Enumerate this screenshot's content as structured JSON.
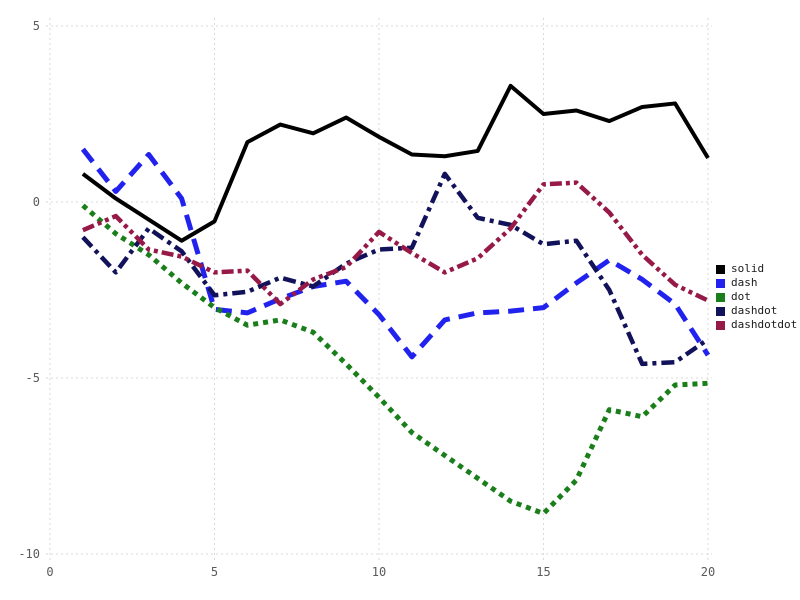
{
  "chart_data": {
    "type": "line",
    "title": "",
    "xlabel": "",
    "ylabel": "",
    "grid": true,
    "legend_position": "right-outside",
    "xlim": [
      0,
      20
    ],
    "ylim": [
      -10,
      5
    ],
    "x_ticks": [
      0,
      5,
      10,
      15,
      20
    ],
    "y_ticks": [
      5,
      0,
      -5,
      -10
    ],
    "x": [
      1,
      2,
      3,
      4,
      5,
      6,
      7,
      8,
      9,
      10,
      11,
      12,
      13,
      14,
      15,
      16,
      17,
      18,
      19,
      20
    ],
    "series": [
      {
        "name": "solid",
        "color": "#000000",
        "dash": "solid",
        "width": 4,
        "values": [
          0.8,
          0.1,
          -0.5,
          -1.1,
          -0.55,
          1.7,
          2.2,
          1.95,
          2.4,
          1.85,
          1.35,
          1.3,
          1.45,
          3.3,
          2.5,
          2.6,
          2.3,
          2.7,
          2.8,
          1.25
        ]
      },
      {
        "name": "dash",
        "color": "#2222ee",
        "dash": "dash",
        "width": 5,
        "values": [
          1.5,
          0.3,
          1.35,
          0.1,
          -3.05,
          -3.15,
          -2.75,
          -2.4,
          -2.25,
          -3.2,
          -4.4,
          -3.35,
          -3.15,
          -3.1,
          -3.0,
          -2.3,
          -1.65,
          -2.2,
          -2.9,
          -4.35
        ]
      },
      {
        "name": "dot",
        "color": "#1a7f1a",
        "dash": "dot",
        "width": 5,
        "values": [
          -0.1,
          -0.9,
          -1.5,
          -2.3,
          -3.0,
          -3.5,
          -3.35,
          -3.7,
          -4.6,
          -5.55,
          -6.55,
          -7.2,
          -7.85,
          -8.5,
          -8.85,
          -7.9,
          -5.9,
          -6.1,
          -5.2,
          -5.15
        ]
      },
      {
        "name": "dashdot",
        "color": "#12125a",
        "dash": "dashdot",
        "width": 4.5,
        "values": [
          -1.0,
          -2.0,
          -0.75,
          -1.4,
          -2.65,
          -2.55,
          -2.15,
          -2.4,
          -1.75,
          -1.35,
          -1.3,
          0.8,
          -0.45,
          -0.65,
          -1.2,
          -1.1,
          -2.5,
          -4.6,
          -4.55,
          -3.9
        ]
      },
      {
        "name": "dashdotdot",
        "color": "#961948",
        "dash": "dashdotdot",
        "width": 4.5,
        "values": [
          -0.8,
          -0.4,
          -1.35,
          -1.55,
          -2.0,
          -1.95,
          -2.9,
          -2.2,
          -1.85,
          -0.85,
          -1.45,
          -2.0,
          -1.6,
          -0.75,
          0.5,
          0.55,
          -0.3,
          -1.5,
          -2.35,
          -2.8
        ]
      }
    ],
    "grid_color": "#d9d9d9",
    "tick_label_color": "#5a5a5a"
  }
}
